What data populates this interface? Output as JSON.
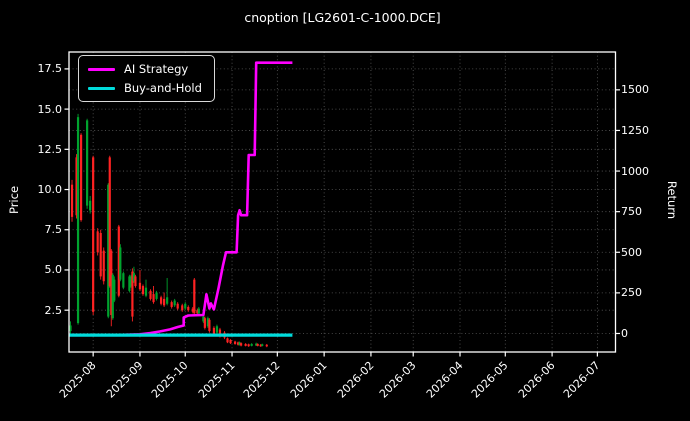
{
  "title": "cnoption [LG2601-C-1000.DCE]",
  "legend": {
    "items": [
      {
        "label": "AI Strategy",
        "color": "#ff00ff"
      },
      {
        "label": "Buy-and-Hold",
        "color": "#00dcdc"
      }
    ]
  },
  "axes": {
    "left_label": "Price",
    "right_label": "Return",
    "price_tick_labels": [
      "2.5",
      "5.0",
      "7.5",
      "10.0",
      "12.5",
      "15.0",
      "17.5"
    ],
    "price_tick_values": [
      2.5,
      5,
      7.5,
      10,
      12.5,
      15,
      17.5
    ],
    "return_tick_labels": [
      "0",
      "250",
      "500",
      "750",
      "1000",
      "1250",
      "1500"
    ],
    "return_tick_values": [
      0,
      250,
      500,
      750,
      1000,
      1250,
      1500
    ],
    "x_tick_labels": [
      "2025-08",
      "2025-09",
      "2025-10",
      "2025-11",
      "2025-12",
      "2026-01",
      "2026-02",
      "2026-03",
      "2026-04",
      "2026-05",
      "2026-06",
      "2026-07"
    ],
    "x_tick_dates": [
      "2025-08-01",
      "2025-09-01",
      "2025-10-01",
      "2025-11-01",
      "2025-12-01",
      "2026-01-01",
      "2026-02-01",
      "2026-03-01",
      "2026-04-01",
      "2026-05-01",
      "2026-06-01",
      "2026-07-01"
    ]
  },
  "colors": {
    "background": "#000000",
    "text": "#ffffff",
    "grid": "#787878",
    "spine": "#ffffff",
    "candle_up": "#00a32e",
    "candle_down": "#ff2222",
    "ai_strategy": "#ff00ff",
    "buy_and_hold": "#00dcdc"
  },
  "chart_data": {
    "type": "candlestick+line",
    "title": "cnoption [LG2601-C-1000.DCE]",
    "xlabel": "",
    "ylabel_left": "Price",
    "ylabel_right": "Return",
    "grid": true,
    "legend_position": "upper-left",
    "x_range": [
      "2025-07-16",
      "2026-07-13"
    ],
    "price_ylim": [
      -0.1,
      18.55
    ],
    "return_ylim": [
      -114,
      1733
    ],
    "candles": [
      [
        "2025-07-17",
        1.2,
        1.8,
        1.0,
        1.55
      ],
      [
        "2025-07-18",
        10.3,
        10.6,
        8.0,
        8.3
      ],
      [
        "2025-07-21",
        12.0,
        12.2,
        8.2,
        8.4
      ],
      [
        "2025-07-22",
        1.7,
        14.7,
        1.6,
        14.5
      ],
      [
        "2025-07-24",
        13.4,
        13.5,
        8.0,
        8.1
      ],
      [
        "2025-07-28",
        9.0,
        14.4,
        8.8,
        14.3
      ],
      [
        "2025-07-30",
        8.7,
        9.6,
        8.5,
        9.3
      ],
      [
        "2025-08-01",
        12.0,
        12.1,
        2.2,
        2.4
      ],
      [
        "2025-08-04",
        7.4,
        7.6,
        5.9,
        6.1
      ],
      [
        "2025-08-06",
        7.3,
        7.5,
        4.4,
        4.6
      ],
      [
        "2025-08-08",
        6.2,
        6.4,
        4.1,
        4.3
      ],
      [
        "2025-08-11",
        2.1,
        10.4,
        2.0,
        10.3
      ],
      [
        "2025-08-12",
        12.0,
        12.1,
        3.9,
        4.0
      ],
      [
        "2025-08-13",
        6.2,
        6.3,
        1.5,
        2.2
      ],
      [
        "2025-08-14",
        2.0,
        4.8,
        1.9,
        4.7
      ],
      [
        "2025-08-15",
        3.1,
        4.6,
        3.0,
        4.4
      ],
      [
        "2025-08-18",
        7.7,
        7.8,
        3.3,
        3.4
      ],
      [
        "2025-08-19",
        4.4,
        6.6,
        4.3,
        6.4
      ],
      [
        "2025-08-21",
        3.9,
        4.9,
        3.8,
        4.8
      ],
      [
        "2025-08-25",
        3.7,
        4.7,
        3.6,
        4.6
      ],
      [
        "2025-08-26",
        4.0,
        4.7,
        3.9,
        4.6
      ],
      [
        "2025-08-27",
        4.9,
        5.1,
        1.8,
        2.1
      ],
      [
        "2025-08-28",
        4.3,
        5.2,
        4.2,
        4.8
      ],
      [
        "2025-08-29",
        4.6,
        4.7,
        3.9,
        4.0
      ],
      [
        "2025-09-01",
        4.2,
        5.0,
        3.7,
        3.8
      ],
      [
        "2025-09-03",
        4.0,
        4.1,
        3.4,
        3.5
      ],
      [
        "2025-09-05",
        3.4,
        4.4,
        3.3,
        3.9
      ],
      [
        "2025-09-08",
        3.7,
        3.8,
        3.1,
        3.2
      ],
      [
        "2025-09-10",
        3.5,
        4.0,
        2.9,
        3.0
      ],
      [
        "2025-09-12",
        3.2,
        3.7,
        3.1,
        3.6
      ],
      [
        "2025-09-15",
        3.3,
        3.4,
        2.8,
        2.9
      ],
      [
        "2025-09-17",
        3.2,
        3.6,
        2.7,
        2.8
      ],
      [
        "2025-09-19",
        2.9,
        4.5,
        2.8,
        3.3
      ],
      [
        "2025-09-22",
        3.0,
        3.1,
        2.6,
        2.7
      ],
      [
        "2025-09-24",
        2.8,
        3.2,
        2.7,
        3.1
      ],
      [
        "2025-09-26",
        2.9,
        3.0,
        2.5,
        2.6
      ],
      [
        "2025-09-29",
        2.8,
        2.9,
        2.4,
        2.5
      ],
      [
        "2025-10-01",
        2.6,
        3.0,
        2.5,
        2.9
      ],
      [
        "2025-10-03",
        2.7,
        2.8,
        2.4,
        2.5
      ],
      [
        "2025-10-06",
        2.6,
        2.7,
        2.3,
        2.4
      ],
      [
        "2025-10-07",
        4.4,
        4.5,
        2.2,
        2.3
      ],
      [
        "2025-10-09",
        2.5,
        2.6,
        2.2,
        2.3
      ],
      [
        "2025-10-10",
        2.3,
        2.7,
        2.2,
        2.6
      ],
      [
        "2025-10-13",
        1.8,
        2.2,
        1.7,
        2.1
      ],
      [
        "2025-10-14",
        2.0,
        2.1,
        1.3,
        1.4
      ],
      [
        "2025-10-16",
        1.5,
        2.1,
        1.4,
        2.0
      ],
      [
        "2025-10-17",
        1.9,
        2.0,
        1.1,
        1.2
      ],
      [
        "2025-10-20",
        1.4,
        1.5,
        0.9,
        1.0
      ],
      [
        "2025-10-22",
        1.1,
        1.6,
        1.0,
        1.5
      ],
      [
        "2025-10-24",
        1.3,
        1.4,
        0.8,
        0.9
      ],
      [
        "2025-10-27",
        1.1,
        1.2,
        0.7,
        0.8
      ],
      [
        "2025-10-29",
        0.75,
        0.8,
        0.45,
        0.5
      ],
      [
        "2025-10-31",
        0.65,
        0.7,
        0.4,
        0.45
      ],
      [
        "2025-11-03",
        0.55,
        0.6,
        0.35,
        0.4
      ],
      [
        "2025-11-05",
        0.5,
        0.55,
        0.3,
        0.35
      ],
      [
        "2025-11-06",
        0.35,
        0.55,
        0.3,
        0.5
      ],
      [
        "2025-11-07",
        0.45,
        0.5,
        0.25,
        0.3
      ],
      [
        "2025-11-10",
        0.4,
        0.45,
        0.25,
        0.28
      ],
      [
        "2025-11-12",
        0.38,
        0.42,
        0.22,
        0.26
      ],
      [
        "2025-11-14",
        0.28,
        0.45,
        0.25,
        0.4
      ],
      [
        "2025-11-17",
        0.3,
        0.48,
        0.28,
        0.42
      ],
      [
        "2025-11-18",
        0.4,
        0.44,
        0.25,
        0.28
      ],
      [
        "2025-11-20",
        0.35,
        0.4,
        0.22,
        0.25
      ],
      [
        "2025-11-21",
        0.28,
        0.42,
        0.25,
        0.38
      ],
      [
        "2025-11-24",
        0.35,
        0.4,
        0.2,
        0.25
      ]
    ],
    "series": [
      {
        "name": "AI Strategy",
        "axis": "return",
        "color": "#ff00ff",
        "width": 2.6,
        "points": [
          [
            "2025-07-16",
            -8
          ],
          [
            "2025-08-20",
            -8
          ],
          [
            "2025-09-01",
            -5
          ],
          [
            "2025-09-08",
            3
          ],
          [
            "2025-09-14",
            12
          ],
          [
            "2025-09-21",
            25
          ],
          [
            "2025-09-26",
            40
          ],
          [
            "2025-09-30",
            49
          ],
          [
            "2025-09-30",
            99
          ],
          [
            "2025-10-03",
            111
          ],
          [
            "2025-10-13",
            114
          ],
          [
            "2025-10-15",
            241
          ],
          [
            "2025-10-17",
            154
          ],
          [
            "2025-10-18",
            185
          ],
          [
            "2025-10-20",
            148
          ],
          [
            "2025-10-23",
            278
          ],
          [
            "2025-10-26",
            420
          ],
          [
            "2025-10-28",
            500
          ],
          [
            "2025-11-04",
            500
          ],
          [
            "2025-11-05",
            728
          ],
          [
            "2025-11-06",
            759
          ],
          [
            "2025-11-07",
            728
          ],
          [
            "2025-11-11",
            728
          ],
          [
            "2025-11-12",
            1099
          ],
          [
            "2025-11-16",
            1099
          ],
          [
            "2025-11-17",
            1667
          ],
          [
            "2025-12-11",
            1667
          ]
        ]
      },
      {
        "name": "Buy-and-Hold",
        "axis": "return",
        "color": "#00dcdc",
        "width": 3.2,
        "points": [
          [
            "2025-07-16",
            -10
          ],
          [
            "2025-12-11",
            -10
          ]
        ]
      }
    ]
  }
}
